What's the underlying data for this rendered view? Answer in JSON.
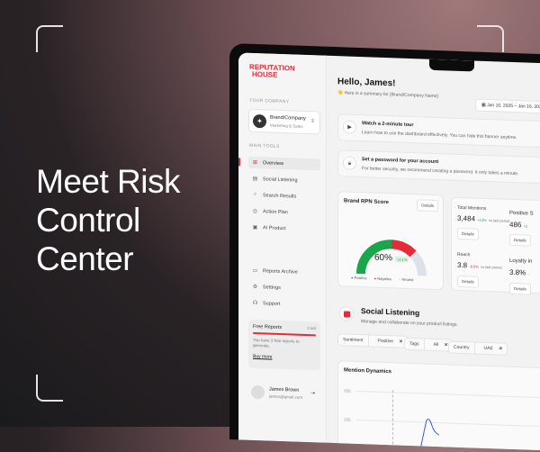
{
  "headline": {
    "line1": "Meet Risk",
    "line2": "Control",
    "line3": "Center"
  },
  "brand": {
    "line1": "REPUTATION",
    "line2": "HOUSE",
    "color": "#e52b38"
  },
  "sidebar": {
    "company_label": "YOUR COMPANY",
    "company": {
      "name": "Brand/Company",
      "sub": "Marketing & Sales"
    },
    "tools_label": "MAIN TOOLS",
    "items": [
      {
        "label": "Overview",
        "icon": "grid-icon",
        "active": true
      },
      {
        "label": "Social Listening",
        "icon": "chart-icon"
      },
      {
        "label": "Search Results",
        "icon": "search-icon"
      },
      {
        "label": "Action Plan",
        "icon": "target-icon"
      },
      {
        "label": "AI Product",
        "icon": "ai-icon"
      }
    ],
    "bottom_items": [
      {
        "label": "Reports Archive",
        "icon": "archive-icon"
      },
      {
        "label": "Settings",
        "icon": "gear-icon"
      },
      {
        "label": "Support",
        "icon": "headset-icon"
      }
    ],
    "free_reports": {
      "title": "Free Reports",
      "count": "3 left",
      "desc": "You have 3 free reports to generate.",
      "cta": "Buy more",
      "progress": 1.0
    },
    "user": {
      "name": "James Brown",
      "email": "james@gmail.com"
    }
  },
  "header": {
    "greeting": "Hello, James!",
    "summary": "👋 Here is a summary for [Brand/Company Name]",
    "date_range": "Jan 10, 2025 – Jan 16, 2025"
  },
  "banners": [
    {
      "title": "Watch a 2-minute tour",
      "desc": "Learn how to use the dashboard effectively. You can hide this banner anytime.",
      "icon": "video-icon"
    },
    {
      "title": "Set a password for your account",
      "desc": "For better security, we recommend creating a password. It only takes a minute.",
      "icon": "lock-icon"
    }
  ],
  "rpn": {
    "title": "Brand RPN Score",
    "details": "Details",
    "total_label": "TOTAL",
    "total": "60%",
    "change": "+2.1%",
    "positive": 0.5,
    "negative": 0.25,
    "neutral": 0.25,
    "legend": [
      "Positive",
      "Negative",
      "Neutral"
    ],
    "colors": {
      "positive": "#1aa64b",
      "negative": "#e52b38",
      "neutral": "#dde1ea"
    }
  },
  "metrics": [
    {
      "title": "Total Mentions",
      "value": "3,484",
      "change": "+13%",
      "suffix": "vs last period",
      "details": "Details"
    },
    {
      "title": "Positive S",
      "value": "486",
      "change": "+2",
      "details": "Details"
    },
    {
      "title": "Reach",
      "value": "3.8",
      "change": "-9.5%",
      "suffix": "vs last period",
      "details": "Details"
    },
    {
      "title": "Loyalty in",
      "value": "3.8%",
      "change": "-",
      "details": "Details"
    }
  ],
  "social": {
    "title": "Social Listening",
    "desc": "Manage and collaborate on your product listings.",
    "filters": [
      {
        "label": "Sentiment",
        "value": "Positive"
      },
      {
        "label": "Tags",
        "value": "All"
      },
      {
        "label": "Country",
        "value": "UAE"
      }
    ]
  },
  "mention_dynamics": {
    "title": "Mention Dynamics",
    "y_ticks": [
      "200",
      "150"
    ]
  }
}
